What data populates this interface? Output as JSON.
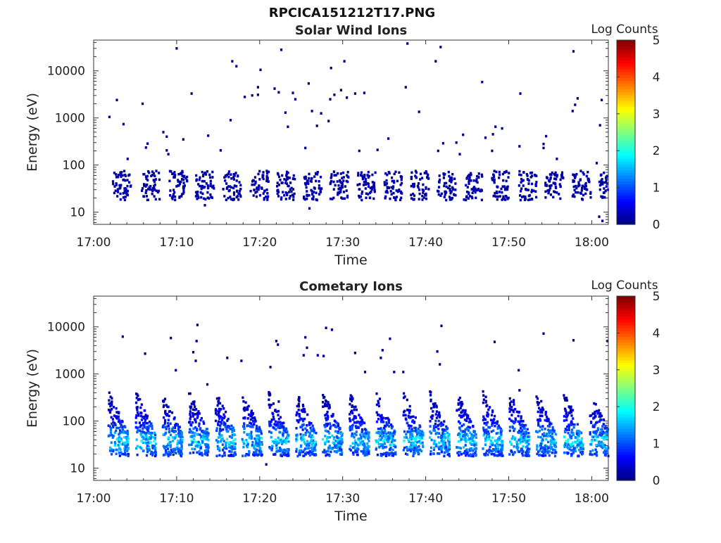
{
  "figure_title": "RPCICA151212T17.PNG",
  "colors": {
    "colormap": [
      "#00007f",
      "#0000ff",
      "#007fff",
      "#00ffff",
      "#7fff7f",
      "#ffff00",
      "#ff7f00",
      "#ff0000",
      "#7f0000"
    ],
    "axis": "#222222"
  },
  "chart_data": [
    {
      "type": "heatmap",
      "title": "Solar Wind Ions",
      "xlabel": "Time",
      "ylabel": "Energy (eV)",
      "x_ticks": [
        "17:00",
        "17:10",
        "17:20",
        "17:30",
        "17:40",
        "17:50",
        "18:00"
      ],
      "x_tick_minutes": [
        0,
        10,
        20,
        30,
        40,
        50,
        60
      ],
      "xlim_minutes": [
        0,
        62
      ],
      "y_ticks": [
        "10",
        "100",
        "1000",
        "10000"
      ],
      "y_tick_values": [
        10,
        100,
        1000,
        10000
      ],
      "ylim": [
        5.5,
        45000
      ],
      "y_scale": "log",
      "colorbar": {
        "label": "Log Counts",
        "ticks": [
          "0",
          "1",
          "2",
          "3",
          "4",
          "5"
        ],
        "range": [
          0,
          5
        ]
      },
      "sweep_start_minutes": [
        2.3,
        5.8,
        9.1,
        12.3,
        15.6,
        18.9,
        22.1,
        25.3,
        28.5,
        31.8,
        35.0,
        38.2,
        41.4,
        44.6,
        47.9,
        51.2,
        54.4,
        57.7,
        60.9
      ],
      "main_energy_band_eV": [
        18,
        75
      ],
      "main_band_log_counts": 0.2,
      "sparse_points": [
        {
          "t": 1.9,
          "e": 1050,
          "c": 0.1
        },
        {
          "t": 2.8,
          "e": 2400,
          "c": 0.1
        },
        {
          "t": 3.6,
          "e": 740,
          "c": 0.1
        },
        {
          "t": 4.1,
          "e": 135,
          "c": 0.1
        },
        {
          "t": 5.9,
          "e": 2000,
          "c": 0.1
        },
        {
          "t": 6.5,
          "e": 285,
          "c": 0.1
        },
        {
          "t": 6.3,
          "e": 235,
          "c": 0.1
        },
        {
          "t": 8.4,
          "e": 500,
          "c": 0.1
        },
        {
          "t": 8.8,
          "e": 400,
          "c": 0.1
        },
        {
          "t": 8.8,
          "e": 205,
          "c": 0.1
        },
        {
          "t": 9.0,
          "e": 170,
          "c": 0.1
        },
        {
          "t": 10.0,
          "e": 30000,
          "c": 0.1
        },
        {
          "t": 10.8,
          "e": 350,
          "c": 0.1
        },
        {
          "t": 11.8,
          "e": 3300,
          "c": 0.1
        },
        {
          "t": 13.8,
          "e": 420,
          "c": 0.1
        },
        {
          "t": 15.3,
          "e": 205,
          "c": 0.1
        },
        {
          "t": 16.5,
          "e": 900,
          "c": 0.1
        },
        {
          "t": 16.7,
          "e": 16000,
          "c": 0.1
        },
        {
          "t": 17.2,
          "e": 12500,
          "c": 0.1
        },
        {
          "t": 18.2,
          "e": 2800,
          "c": 0.1
        },
        {
          "t": 19.1,
          "e": 3000,
          "c": 0.1
        },
        {
          "t": 19.8,
          "e": 4500,
          "c": 0.1
        },
        {
          "t": 19.8,
          "e": 3100,
          "c": 0.1
        },
        {
          "t": 20.1,
          "e": 10500,
          "c": 0.1
        },
        {
          "t": 21.8,
          "e": 4200,
          "c": 0.1
        },
        {
          "t": 22.3,
          "e": 3500,
          "c": 0.1
        },
        {
          "t": 22.6,
          "e": 28000,
          "c": 0.1
        },
        {
          "t": 23.1,
          "e": 1300,
          "c": 0.1
        },
        {
          "t": 23.4,
          "e": 650,
          "c": 0.1
        },
        {
          "t": 24.0,
          "e": 3400,
          "c": 0.1
        },
        {
          "t": 24.3,
          "e": 2500,
          "c": 0.1
        },
        {
          "t": 25.5,
          "e": 230,
          "c": 0.1
        },
        {
          "t": 25.9,
          "e": 5400,
          "c": 0.1
        },
        {
          "t": 26.9,
          "e": 680,
          "c": 0.1
        },
        {
          "t": 26.3,
          "e": 1400,
          "c": 0.1
        },
        {
          "t": 27.4,
          "e": 1250,
          "c": 0.1
        },
        {
          "t": 28.3,
          "e": 860,
          "c": 0.1
        },
        {
          "t": 28.5,
          "e": 2500,
          "c": 0.1
        },
        {
          "t": 28.6,
          "e": 11500,
          "c": 0.1
        },
        {
          "t": 29.0,
          "e": 3100,
          "c": 0.1
        },
        {
          "t": 29.8,
          "e": 3900,
          "c": 0.1
        },
        {
          "t": 30.2,
          "e": 16000,
          "c": 0.1
        },
        {
          "t": 30.5,
          "e": 2700,
          "c": 0.1
        },
        {
          "t": 31.5,
          "e": 3300,
          "c": 0.1
        },
        {
          "t": 32.6,
          "e": 3400,
          "c": 0.1
        },
        {
          "t": 32.0,
          "e": 200,
          "c": 0.1
        },
        {
          "t": 34.2,
          "e": 210,
          "c": 0.1
        },
        {
          "t": 35.5,
          "e": 365,
          "c": 0.1
        },
        {
          "t": 37.6,
          "e": 4500,
          "c": 0.1
        },
        {
          "t": 37.8,
          "e": 38000,
          "c": 0.1
        },
        {
          "t": 39.2,
          "e": 1350,
          "c": 0.1
        },
        {
          "t": 41.2,
          "e": 16000,
          "c": 0.1
        },
        {
          "t": 41.8,
          "e": 32000,
          "c": 0.1
        },
        {
          "t": 42.1,
          "e": 290,
          "c": 0.1
        },
        {
          "t": 41.5,
          "e": 200,
          "c": 0.1
        },
        {
          "t": 43.7,
          "e": 300,
          "c": 0.1
        },
        {
          "t": 44.1,
          "e": 170,
          "c": 0.1
        },
        {
          "t": 44.5,
          "e": 440,
          "c": 0.1
        },
        {
          "t": 46.8,
          "e": 5800,
          "c": 0.1
        },
        {
          "t": 47.2,
          "e": 380,
          "c": 0.1
        },
        {
          "t": 48.4,
          "e": 650,
          "c": 0.1
        },
        {
          "t": 48.1,
          "e": 450,
          "c": 0.1
        },
        {
          "t": 48.0,
          "e": 200,
          "c": 0.1
        },
        {
          "t": 49.2,
          "e": 600,
          "c": 0.1
        },
        {
          "t": 51.4,
          "e": 3300,
          "c": 0.1
        },
        {
          "t": 51.3,
          "e": 250,
          "c": 0.1
        },
        {
          "t": 54.2,
          "e": 230,
          "c": 0.1
        },
        {
          "t": 54.2,
          "e": 280,
          "c": 0.1
        },
        {
          "t": 54.5,
          "e": 410,
          "c": 0.1
        },
        {
          "t": 55.8,
          "e": 135,
          "c": 0.1
        },
        {
          "t": 57.7,
          "e": 1400,
          "c": 0.1
        },
        {
          "t": 58.0,
          "e": 1900,
          "c": 0.1
        },
        {
          "t": 58.3,
          "e": 2600,
          "c": 0.1
        },
        {
          "t": 57.8,
          "e": 26000,
          "c": 0.1
        },
        {
          "t": 60.6,
          "e": 110,
          "c": 0.1
        },
        {
          "t": 61.0,
          "e": 700,
          "c": 0.1
        },
        {
          "t": 61.2,
          "e": 2400,
          "c": 0.1
        },
        {
          "t": 60.9,
          "e": 8,
          "c": 0.1
        },
        {
          "t": 61.3,
          "e": 6.5,
          "c": 0.1
        },
        {
          "t": 26.0,
          "e": 12,
          "c": 0.1
        },
        {
          "t": 13.4,
          "e": 14,
          "c": 0.1
        }
      ]
    },
    {
      "type": "heatmap",
      "title": "Cometary Ions",
      "xlabel": "Time",
      "ylabel": "Energy (eV)",
      "x_ticks": [
        "17:00",
        "17:10",
        "17:20",
        "17:30",
        "17:40",
        "17:50",
        "18:00"
      ],
      "x_tick_minutes": [
        0,
        10,
        20,
        30,
        40,
        50,
        60
      ],
      "xlim_minutes": [
        0,
        62
      ],
      "y_ticks": [
        "10",
        "100",
        "1000",
        "10000"
      ],
      "y_tick_values": [
        10,
        100,
        1000,
        10000
      ],
      "ylim": [
        5.5,
        45000
      ],
      "y_scale": "log",
      "colorbar": {
        "label": "Log Counts",
        "ticks": [
          "0",
          "1",
          "2",
          "3",
          "4",
          "5"
        ],
        "range": [
          0,
          5
        ]
      },
      "sweep_start_minutes": [
        1.8,
        5.1,
        8.3,
        11.5,
        14.7,
        17.9,
        21.1,
        24.4,
        27.6,
        30.8,
        34.0,
        37.3,
        40.5,
        43.7,
        46.9,
        50.1,
        53.3,
        56.6,
        59.8
      ],
      "sweep_energy_range_eV": [
        18,
        450
      ],
      "peak_energy_eV": 38,
      "peak_log_counts": 2.1,
      "sparse_points": [
        {
          "t": 3.5,
          "e": 6200,
          "c": 0.1
        },
        {
          "t": 6.2,
          "e": 2700,
          "c": 0.1
        },
        {
          "t": 9.3,
          "e": 5800,
          "c": 0.1
        },
        {
          "t": 9.9,
          "e": 1200,
          "c": 0.1
        },
        {
          "t": 12.0,
          "e": 2900,
          "c": 0.1
        },
        {
          "t": 12.5,
          "e": 11000,
          "c": 0.1
        },
        {
          "t": 12.4,
          "e": 5000,
          "c": 0.1
        },
        {
          "t": 12.3,
          "e": 1900,
          "c": 0.1
        },
        {
          "t": 16.1,
          "e": 2200,
          "c": 0.1
        },
        {
          "t": 17.8,
          "e": 1900,
          "c": 0.1
        },
        {
          "t": 21.3,
          "e": 1400,
          "c": 0.1
        },
        {
          "t": 22.0,
          "e": 5000,
          "c": 0.1
        },
        {
          "t": 22.2,
          "e": 4200,
          "c": 0.1
        },
        {
          "t": 25.3,
          "e": 2500,
          "c": 0.1
        },
        {
          "t": 25.5,
          "e": 6000,
          "c": 0.1
        },
        {
          "t": 25.7,
          "e": 3600,
          "c": 0.1
        },
        {
          "t": 27.0,
          "e": 2500,
          "c": 0.1
        },
        {
          "t": 27.7,
          "e": 2400,
          "c": 0.1
        },
        {
          "t": 28.0,
          "e": 9500,
          "c": 0.1
        },
        {
          "t": 28.7,
          "e": 8700,
          "c": 0.1
        },
        {
          "t": 31.5,
          "e": 2800,
          "c": 0.1
        },
        {
          "t": 32.7,
          "e": 1100,
          "c": 0.1
        },
        {
          "t": 34.6,
          "e": 2200,
          "c": 0.1
        },
        {
          "t": 34.8,
          "e": 3200,
          "c": 0.1
        },
        {
          "t": 35.7,
          "e": 5600,
          "c": 0.1
        },
        {
          "t": 36.2,
          "e": 1100,
          "c": 0.1
        },
        {
          "t": 37.3,
          "e": 1100,
          "c": 0.1
        },
        {
          "t": 41.7,
          "e": 1600,
          "c": 0.1
        },
        {
          "t": 41.4,
          "e": 3000,
          "c": 0.1
        },
        {
          "t": 41.9,
          "e": 10500,
          "c": 0.1
        },
        {
          "t": 48.3,
          "e": 4800,
          "c": 0.1
        },
        {
          "t": 51.2,
          "e": 1200,
          "c": 0.1
        },
        {
          "t": 51.3,
          "e": 450,
          "c": 0.1
        },
        {
          "t": 54.2,
          "e": 7200,
          "c": 0.1
        },
        {
          "t": 57.8,
          "e": 5200,
          "c": 0.1
        },
        {
          "t": 61.9,
          "e": 5000,
          "c": 0.1
        },
        {
          "t": 22.3,
          "e": 260,
          "c": 0.1
        },
        {
          "t": 13.7,
          "e": 600,
          "c": 0.1
        },
        {
          "t": 20.8,
          "e": 12,
          "c": 0.1
        }
      ]
    }
  ]
}
